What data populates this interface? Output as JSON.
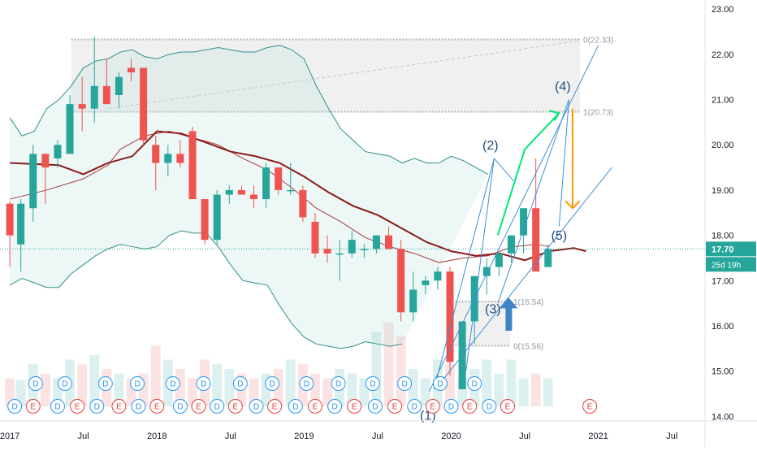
{
  "chart_data": {
    "type": "candlestick",
    "instrument_axis": {
      "ylim": [
        13.9,
        23.2
      ],
      "y_ticks": [
        "23.00",
        "22.00",
        "21.00",
        "20.00",
        "19.00",
        "18.00",
        "17.00",
        "16.00",
        "15.00",
        "14.00"
      ],
      "y_tick_values": [
        23,
        22,
        21,
        20,
        19,
        18,
        17,
        16,
        15,
        14
      ]
    },
    "x_ticks": [
      "2017",
      "Jul",
      "2018",
      "Jul",
      "2019",
      "Jul",
      "2020",
      "Jul",
      "2021",
      "Jul"
    ],
    "x_tick_index": [
      0,
      6,
      12,
      18,
      24,
      30,
      36,
      42,
      48,
      54
    ],
    "xlim_index": [
      -0.8,
      56.7
    ],
    "candles": [
      [
        18.7,
        18.75,
        17.3,
        18.0
      ],
      [
        17.8,
        18.8,
        17.2,
        18.7
      ],
      [
        18.6,
        20.0,
        18.3,
        19.8
      ],
      [
        19.8,
        19.8,
        18.7,
        19.5
      ],
      [
        19.7,
        20.1,
        19.5,
        20.0
      ],
      [
        19.8,
        21.1,
        19.8,
        20.9
      ],
      [
        20.9,
        21.5,
        20.3,
        20.8
      ],
      [
        20.8,
        22.4,
        20.5,
        21.3
      ],
      [
        21.3,
        21.9,
        20.9,
        20.9
      ],
      [
        21.1,
        21.6,
        20.8,
        21.5
      ],
      [
        21.7,
        21.9,
        21.4,
        21.6
      ],
      [
        21.7,
        21.7,
        20.0,
        20.1
      ],
      [
        20.0,
        20.2,
        19.0,
        19.6
      ],
      [
        19.6,
        20.0,
        19.3,
        19.8
      ],
      [
        19.8,
        20.1,
        19.5,
        19.6
      ],
      [
        20.3,
        20.4,
        18.8,
        18.8
      ],
      [
        18.8,
        18.8,
        17.8,
        17.9
      ],
      [
        17.9,
        19.0,
        17.8,
        18.9
      ],
      [
        18.9,
        19.1,
        18.7,
        19.0
      ],
      [
        19.0,
        19.1,
        18.9,
        18.9
      ],
      [
        18.9,
        19.1,
        18.6,
        18.8
      ],
      [
        18.8,
        19.6,
        18.6,
        19.5
      ],
      [
        19.5,
        19.5,
        18.9,
        19.0
      ],
      [
        19.0,
        19.6,
        18.9,
        19.0
      ],
      [
        19.0,
        19.1,
        18.3,
        18.4
      ],
      [
        18.3,
        18.5,
        17.5,
        17.6
      ],
      [
        17.7,
        18.0,
        17.4,
        17.6
      ],
      [
        17.6,
        17.9,
        17.0,
        17.6
      ],
      [
        17.6,
        18.1,
        17.5,
        17.9
      ],
      [
        17.7,
        17.8,
        17.5,
        17.7
      ],
      [
        17.7,
        18.0,
        17.6,
        18.0
      ],
      [
        18.0,
        18.2,
        17.7,
        17.7
      ],
      [
        17.7,
        17.9,
        16.1,
        16.3
      ],
      [
        16.3,
        17.2,
        16.1,
        16.8
      ],
      [
        16.9,
        17.1,
        16.7,
        17.0
      ],
      [
        17.0,
        17.3,
        16.8,
        17.2
      ],
      [
        17.2,
        17.3,
        14.9,
        15.2
      ],
      [
        14.6,
        16.1,
        14.6,
        16.1
      ],
      [
        16.1,
        17.1,
        15.6,
        17.1
      ],
      [
        17.1,
        17.5,
        16.7,
        17.3
      ],
      [
        17.3,
        17.6,
        17.1,
        17.6
      ],
      [
        17.6,
        18.0,
        17.4,
        18.0
      ],
      [
        18.0,
        18.6,
        17.6,
        18.6
      ],
      [
        18.6,
        19.7,
        17.2,
        17.2
      ],
      [
        17.3,
        17.8,
        17.3,
        17.7
      ]
    ],
    "candle_index_offset": [
      0,
      0.9,
      1.9,
      2.9,
      3.9,
      4.9,
      5.9,
      6.9,
      7.9,
      8.9,
      9.9,
      10.9,
      11.9,
      12.9,
      13.9,
      14.9,
      15.9,
      16.9,
      17.9,
      18.9,
      19.9,
      20.9,
      21.9,
      22.9,
      23.9,
      24.9,
      25.9,
      26.9,
      27.9,
      28.9,
      29.9,
      30.9,
      31.9,
      32.9,
      33.9,
      34.9,
      35.9,
      36.9,
      37.9,
      38.9,
      39.9,
      40.9,
      41.9,
      42.9,
      43.9
    ],
    "colors": {
      "up": "#26a69a",
      "down": "#ef5350",
      "sma": "#8b1a1a",
      "bb": "#2f8f8a",
      "bb_fill": "#e0f2f1",
      "draw": "#3d8fd6",
      "arrow_green": "#00e676",
      "arrow_orange": "#ff9800",
      "zone": "#cfcfcf",
      "last_tag": "#26a69a"
    },
    "sma_fast": [
      [
        0,
        19.6
      ],
      [
        4,
        19.55
      ],
      [
        6,
        19.35
      ],
      [
        8,
        19.6
      ],
      [
        10,
        19.75
      ],
      [
        12,
        20.3
      ],
      [
        14,
        20.25
      ],
      [
        16,
        20.05
      ],
      [
        18,
        19.85
      ],
      [
        20,
        19.75
      ],
      [
        22,
        19.6
      ],
      [
        24,
        19.3
      ],
      [
        26,
        18.95
      ],
      [
        28,
        18.65
      ],
      [
        30,
        18.45
      ],
      [
        32,
        18.15
      ],
      [
        34,
        17.85
      ],
      [
        36,
        17.65
      ],
      [
        38,
        17.55
      ],
      [
        40,
        17.6
      ],
      [
        42,
        17.45
      ],
      [
        44,
        17.65
      ],
      [
        46,
        17.72
      ],
      [
        47,
        17.65
      ]
    ],
    "sma_slow": [
      [
        0,
        18.8
      ],
      [
        3,
        19.0
      ],
      [
        6,
        19.25
      ],
      [
        8,
        19.55
      ],
      [
        9,
        19.9
      ],
      [
        11,
        20.2
      ],
      [
        13,
        20.3
      ],
      [
        15,
        20.15
      ],
      [
        17,
        20.0
      ],
      [
        19,
        19.7
      ],
      [
        21,
        19.45
      ],
      [
        23,
        19.05
      ],
      [
        25,
        18.6
      ],
      [
        27,
        18.3
      ],
      [
        29,
        17.95
      ],
      [
        31,
        17.75
      ],
      [
        33,
        17.6
      ],
      [
        35,
        17.4
      ],
      [
        37,
        17.5
      ],
      [
        39,
        17.55
      ],
      [
        41,
        17.75
      ],
      [
        43,
        17.8
      ],
      [
        44,
        17.75
      ]
    ],
    "bb_upper": [
      [
        0,
        20.6
      ],
      [
        1,
        20.2
      ],
      [
        2,
        20.3
      ],
      [
        3,
        20.8
      ],
      [
        4,
        21.0
      ],
      [
        5,
        21.3
      ],
      [
        6,
        21.7
      ],
      [
        7,
        21.85
      ],
      [
        8,
        21.9
      ],
      [
        9,
        22.05
      ],
      [
        10,
        22.1
      ],
      [
        11,
        21.95
      ],
      [
        12,
        21.9
      ],
      [
        13,
        22.0
      ],
      [
        14,
        22.05
      ],
      [
        15,
        22.05
      ],
      [
        16,
        22.1
      ],
      [
        17,
        22.15
      ],
      [
        18,
        22.1
      ],
      [
        19,
        22.05
      ],
      [
        20,
        22.05
      ],
      [
        21,
        22.15
      ],
      [
        22,
        22.2
      ],
      [
        23,
        22.1
      ],
      [
        24,
        21.9
      ],
      [
        25,
        21.3
      ],
      [
        26,
        20.8
      ],
      [
        27,
        20.35
      ],
      [
        28,
        20.1
      ],
      [
        29,
        19.85
      ],
      [
        30,
        19.8
      ],
      [
        31,
        19.75
      ],
      [
        32,
        19.6
      ],
      [
        33,
        19.7
      ],
      [
        34,
        19.6
      ],
      [
        35,
        19.6
      ],
      [
        36,
        19.75
      ],
      [
        37,
        19.65
      ],
      [
        38,
        19.5
      ],
      [
        39,
        19.35
      ]
    ],
    "bb_lower": [
      [
        0,
        16.9
      ],
      [
        1,
        17.05
      ],
      [
        2,
        16.95
      ],
      [
        3,
        16.85
      ],
      [
        4,
        16.85
      ],
      [
        5,
        17.15
      ],
      [
        6,
        17.35
      ],
      [
        7,
        17.55
      ],
      [
        8,
        17.7
      ],
      [
        9,
        17.8
      ],
      [
        10,
        17.75
      ],
      [
        11,
        17.7
      ],
      [
        12,
        17.75
      ],
      [
        13,
        18.0
      ],
      [
        14,
        18.1
      ],
      [
        15,
        18.05
      ],
      [
        16,
        18.05
      ],
      [
        17,
        17.75
      ],
      [
        18,
        17.35
      ],
      [
        19,
        17.0
      ],
      [
        20,
        16.95
      ],
      [
        21,
        16.9
      ],
      [
        22,
        16.45
      ],
      [
        23,
        16.05
      ],
      [
        24,
        15.75
      ],
      [
        25,
        15.6
      ],
      [
        26,
        15.55
      ],
      [
        27,
        15.5
      ],
      [
        28,
        15.55
      ],
      [
        29,
        15.65
      ],
      [
        30,
        15.6
      ],
      [
        31,
        15.55
      ],
      [
        32,
        15.6
      ]
    ],
    "volume_bars": [
      0.3,
      0.28,
      0.45,
      0.35,
      0.3,
      0.5,
      0.45,
      0.55,
      0.4,
      0.35,
      0.3,
      0.35,
      0.65,
      0.5,
      0.4,
      0.3,
      0.5,
      0.45,
      0.4,
      0.35,
      0.3,
      0.35,
      0.4,
      0.5,
      0.45,
      0.35,
      0.3,
      0.4,
      0.35,
      0.3,
      0.8,
      0.9,
      0.75,
      0.4,
      0.3,
      0.5,
      0.45,
      0.3,
      0.4,
      0.5,
      0.35,
      0.5,
      0.3,
      0.35,
      0.3
    ],
    "fib_top": {
      "label_0": "0(22.33)",
      "label_1": "1(20.73)",
      "y0": 22.33,
      "y1": 20.73,
      "x_from": 5,
      "x_to": 46.5
    },
    "fib_bottom": {
      "label_0": "0(15.56)",
      "label_1": "1(16.54)",
      "y0": 15.56,
      "y1": 16.54,
      "x_from": 35.8,
      "x_to": 40.8
    },
    "wave_labels": [
      {
        "text": "(2)",
        "x": 39.2,
        "y": 19.9
      },
      {
        "text": "(3)",
        "x": 39.4,
        "y": 16.28
      },
      {
        "text": "(4)",
        "x": 45.1,
        "y": 21.2
      },
      {
        "text": "(5)",
        "x": 44.8,
        "y": 17.9
      },
      {
        "text": "(1)",
        "x": 34.1,
        "y": 13.93
      }
    ],
    "channel_lines": [
      {
        "from": [
          34.2,
          14.55
        ],
        "to": [
          48.0,
          22.2
        ]
      },
      {
        "from": [
          35.0,
          14.7
        ],
        "to": [
          49.1,
          19.5
        ]
      },
      {
        "from": [
          34.6,
          14.6
        ],
        "to": [
          39.5,
          19.7
        ]
      },
      {
        "from": [
          39.5,
          19.7
        ],
        "to": [
          41.1,
          19.2
        ]
      },
      {
        "from": [
          39.8,
          16.5
        ],
        "to": [
          45.6,
          21.0
        ]
      },
      {
        "from": [
          45.6,
          21.0
        ],
        "to": [
          44.8,
          18.2
        ]
      },
      {
        "from": [
          37.2,
          15.0
        ],
        "to": [
          39.5,
          19.7
        ]
      }
    ],
    "green_arrow": {
      "from": [
        39.8,
        18.0
      ],
      "mid": [
        42.0,
        19.9
      ],
      "to": [
        44.8,
        20.7
      ]
    },
    "orange_arrow": {
      "from": [
        45.9,
        20.8
      ],
      "to": [
        45.9,
        18.6
      ]
    },
    "blue_up_arrow": {
      "x": 40.7,
      "y_from": 16.0,
      "y_to": 16.55
    },
    "dividend_markers_x": [
      2.1,
      4.5,
      7.8,
      10.4,
      13.3,
      15.8,
      18.8,
      21.4,
      24.2,
      26.8,
      29.6,
      32.2,
      35.1,
      37.9
    ],
    "earnings_markers_x": [
      0.4,
      1.9,
      3.9,
      5.5,
      7.1,
      8.9,
      10.5,
      12.0,
      13.9,
      15.4,
      16.9,
      18.4,
      20.1,
      21.6,
      23.3,
      24.9,
      26.5,
      28.1,
      29.8,
      31.4,
      33.0,
      34.5,
      36.0,
      37.5,
      39.1,
      40.6
    ],
    "markers": {
      "dividend": "D",
      "earnings": "E",
      "last_earnings": "E"
    },
    "last_price": {
      "value": 17.7,
      "label": "17.70",
      "countdown": "25d 19h"
    }
  }
}
